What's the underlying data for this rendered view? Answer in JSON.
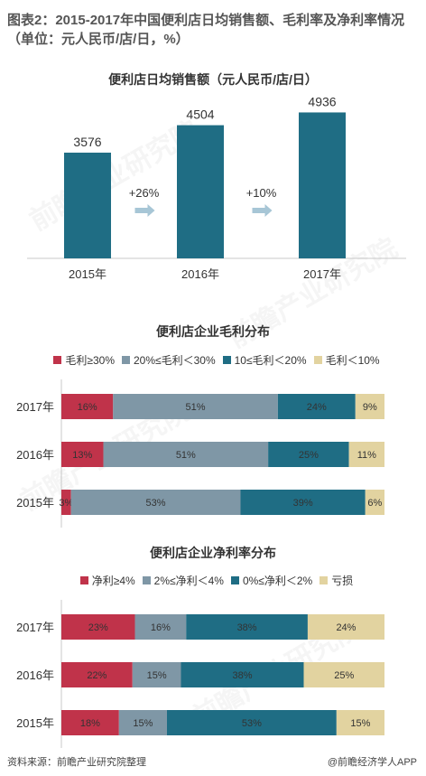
{
  "header": {
    "title": "图表2：2015-2017年中国便利店日均销售额、毛利率及净利率情况（单位：元人民币/店/日，%）"
  },
  "watermark": {
    "text": "前瞻产业研究院"
  },
  "footer": {
    "source": "资料来源：前瞻产业研究院整理",
    "credit": "@前瞻经济学人APP"
  },
  "chart_data": [
    {
      "type": "bar",
      "title": "便利店日均销售额（元人民币/店/日）",
      "categories": [
        "2015年",
        "2016年",
        "2017年"
      ],
      "values": [
        3576,
        4504,
        4936
      ],
      "growth_labels": [
        "+26%",
        "+10%"
      ],
      "ylim": [
        0,
        5500
      ],
      "colors": {
        "bar": "#1f6d84",
        "arrow": "#a7c6d6"
      }
    },
    {
      "type": "bar",
      "orientation": "horizontal-stacked-100",
      "title": "便利店企业毛利分布",
      "categories": [
        "2017年",
        "2016年",
        "2015年"
      ],
      "series": [
        {
          "name": "毛利≥30%",
          "values": [
            16,
            13,
            3
          ],
          "color": "#c0334a"
        },
        {
          "name": "20%≤毛利＜30%",
          "values": [
            51,
            51,
            53
          ],
          "color": "#7f97a6"
        },
        {
          "name": "10≤毛利＜20%",
          "values": [
            24,
            25,
            39
          ],
          "color": "#1f6d84"
        },
        {
          "name": "毛利＜10%",
          "values": [
            9,
            11,
            6
          ],
          "color": "#e2d3a0"
        }
      ],
      "legend": "top"
    },
    {
      "type": "bar",
      "orientation": "horizontal-stacked-100",
      "title": "便利店企业净利率分布",
      "categories": [
        "2017年",
        "2016年",
        "2015年"
      ],
      "series": [
        {
          "name": "净利≥4%",
          "values": [
            23,
            22,
            18
          ],
          "color": "#c0334a"
        },
        {
          "name": "2%≤净利＜4%",
          "values": [
            16,
            15,
            15
          ],
          "color": "#7f97a6"
        },
        {
          "name": "0%≤净利＜2%",
          "values": [
            38,
            38,
            53
          ],
          "color": "#1f6d84"
        },
        {
          "name": "亏损",
          "values": [
            24,
            25,
            15
          ],
          "color": "#e2d3a0"
        }
      ],
      "legend": "top"
    }
  ]
}
